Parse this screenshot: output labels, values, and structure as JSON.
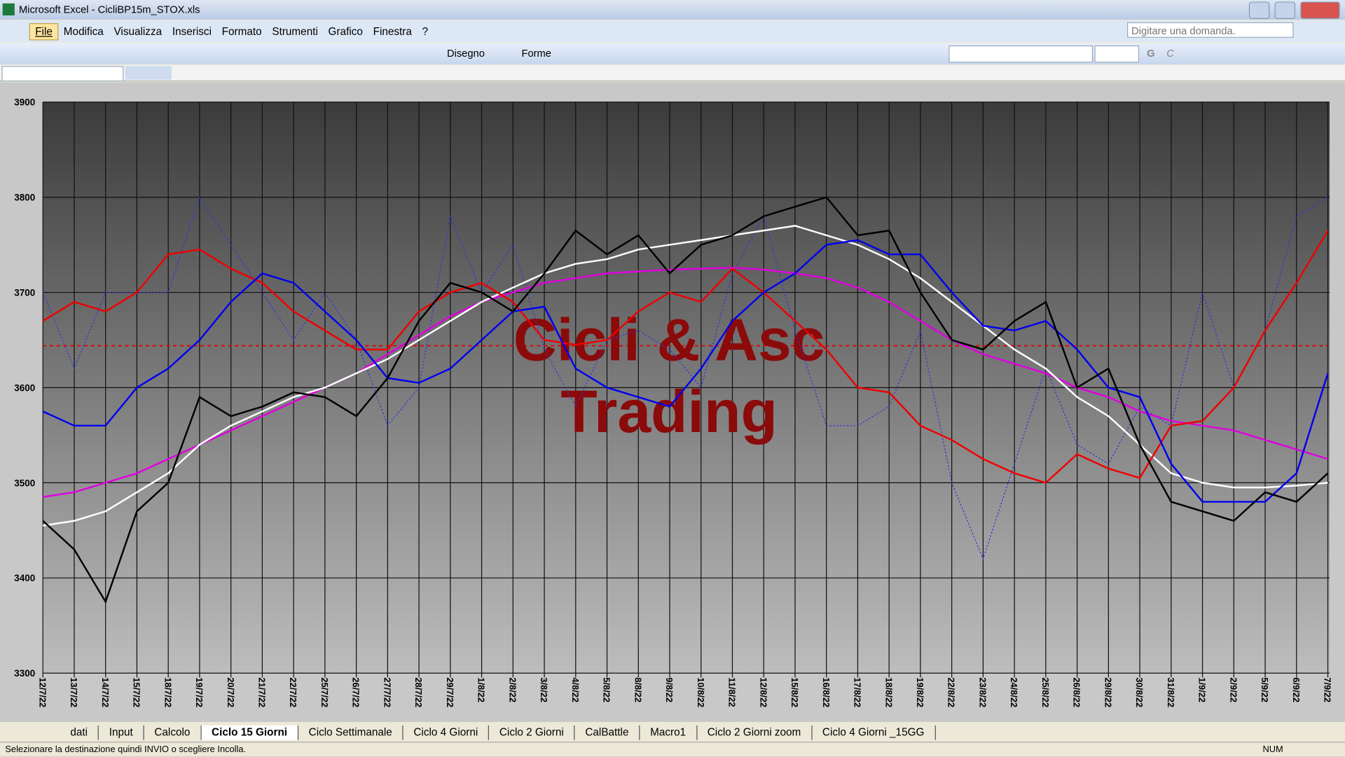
{
  "window": {
    "title": "Microsoft Excel - CicliBP15m_STOX.xls"
  },
  "menu": [
    "File",
    "Modifica",
    "Visualizza",
    "Inserisci",
    "Formato",
    "Strumenti",
    "Grafico",
    "Finestra",
    "?"
  ],
  "help_box": "Digitare una domanda.",
  "toolbar": {
    "draw": "Disegno",
    "shapes": "Forme",
    "bold": "G",
    "italic": "C"
  },
  "sheet_tabs": [
    "dati",
    "Input",
    "Calcolo",
    "Ciclo 15 Giorni",
    "Ciclo Settimanale",
    "Ciclo 4 Giorni",
    "Ciclo 2 Giorni",
    "CalBattle",
    "Macro1",
    "Ciclo 2 Giorni zoom",
    "Ciclo 4 Giorni _15GG"
  ],
  "active_tab": 3,
  "status": {
    "text": "Selezionare la destinazione quindi INVIO o scegliere Incolla.",
    "indicator": "NUM"
  },
  "chart_data": {
    "type": "line",
    "watermark": [
      "Cicli & Asc",
      "Trading"
    ],
    "categories": [
      "12/7/22",
      "13/7/22",
      "14/7/22",
      "15/7/22",
      "18/7/22",
      "19/7/22",
      "20/7/22",
      "21/7/22",
      "22/7/22",
      "25/7/22",
      "26/7/22",
      "27/7/22",
      "28/7/22",
      "29/7/22",
      "1/8/22",
      "2/8/22",
      "3/8/22",
      "4/8/22",
      "5/8/22",
      "8/8/22",
      "9/8/22",
      "10/8/22",
      "11/8/22",
      "12/8/22",
      "15/8/22",
      "16/8/22",
      "17/8/22",
      "18/8/22",
      "19/8/22",
      "22/8/22",
      "23/8/22",
      "24/8/22",
      "25/8/22",
      "26/8/22",
      "29/8/22",
      "30/8/22",
      "31/8/22",
      "1/9/22",
      "2/9/22",
      "5/9/22",
      "6/9/22",
      "7/9/22"
    ],
    "ylim": [
      3300,
      3900
    ],
    "yticks": [
      3300,
      3400,
      3500,
      3600,
      3700,
      3800,
      3900
    ],
    "grid": true,
    "reference_line": {
      "value": 3644,
      "color": "#e00000"
    },
    "series": [
      {
        "color": "#3333dd",
        "style": "dotted",
        "values": [
          3700,
          3620,
          3700,
          3700,
          3700,
          3800,
          3750,
          3700,
          3650,
          3700,
          3650,
          3560,
          3600,
          3780,
          3700,
          3750,
          3640,
          3580,
          3650,
          3660,
          3640,
          3600,
          3720,
          3780,
          3660,
          3560,
          3560,
          3580,
          3660,
          3500,
          3420,
          3520,
          3620,
          3540,
          3520,
          3580,
          3560,
          3700,
          3600,
          3660,
          3780,
          3800
        ]
      },
      {
        "color": "#e000e0",
        "style": "solid",
        "values": [
          3485,
          3490,
          3500,
          3510,
          3525,
          3540,
          3555,
          3570,
          3585,
          3600,
          3615,
          3635,
          3655,
          3675,
          3690,
          3700,
          3710,
          3715,
          3720,
          3722,
          3724,
          3725,
          3726,
          3724,
          3720,
          3715,
          3705,
          3690,
          3670,
          3650,
          3635,
          3625,
          3615,
          3600,
          3590,
          3575,
          3565,
          3560,
          3555,
          3545,
          3535,
          3525
        ]
      },
      {
        "color": "#ffffff",
        "style": "solid",
        "values": [
          3455,
          3460,
          3470,
          3490,
          3510,
          3540,
          3560,
          3575,
          3590,
          3600,
          3615,
          3630,
          3650,
          3670,
          3690,
          3705,
          3720,
          3730,
          3735,
          3745,
          3750,
          3755,
          3760,
          3765,
          3770,
          3760,
          3750,
          3735,
          3715,
          3690,
          3665,
          3640,
          3620,
          3590,
          3570,
          3540,
          3510,
          3500,
          3495,
          3495,
          3497,
          3500
        ]
      },
      {
        "color": "#ee0000",
        "style": "solid",
        "values": [
          3670,
          3690,
          3680,
          3700,
          3740,
          3745,
          3725,
          3710,
          3680,
          3660,
          3640,
          3640,
          3680,
          3700,
          3710,
          3690,
          3650,
          3645,
          3650,
          3680,
          3700,
          3690,
          3725,
          3700,
          3670,
          3640,
          3600,
          3595,
          3560,
          3545,
          3525,
          3510,
          3500,
          3530,
          3515,
          3505,
          3560,
          3565,
          3600,
          3660,
          3710,
          3765
        ]
      },
      {
        "color": "#0000ee",
        "style": "solid",
        "values": [
          3575,
          3560,
          3560,
          3600,
          3620,
          3650,
          3690,
          3720,
          3710,
          3680,
          3650,
          3610,
          3605,
          3620,
          3650,
          3680,
          3685,
          3620,
          3600,
          3590,
          3580,
          3620,
          3670,
          3700,
          3720,
          3750,
          3755,
          3740,
          3740,
          3700,
          3665,
          3660,
          3670,
          3640,
          3600,
          3590,
          3520,
          3480,
          3480,
          3480,
          3510,
          3615
        ]
      },
      {
        "color": "#000000",
        "style": "solid",
        "values": [
          3460,
          3430,
          3375,
          3470,
          3500,
          3590,
          3570,
          3580,
          3595,
          3590,
          3570,
          3610,
          3670,
          3710,
          3700,
          3680,
          3720,
          3765,
          3740,
          3760,
          3720,
          3750,
          3760,
          3780,
          3790,
          3800,
          3760,
          3765,
          3700,
          3650,
          3640,
          3670,
          3690,
          3600,
          3620,
          3540,
          3480,
          3470,
          3460,
          3490,
          3480,
          3510
        ]
      }
    ]
  }
}
